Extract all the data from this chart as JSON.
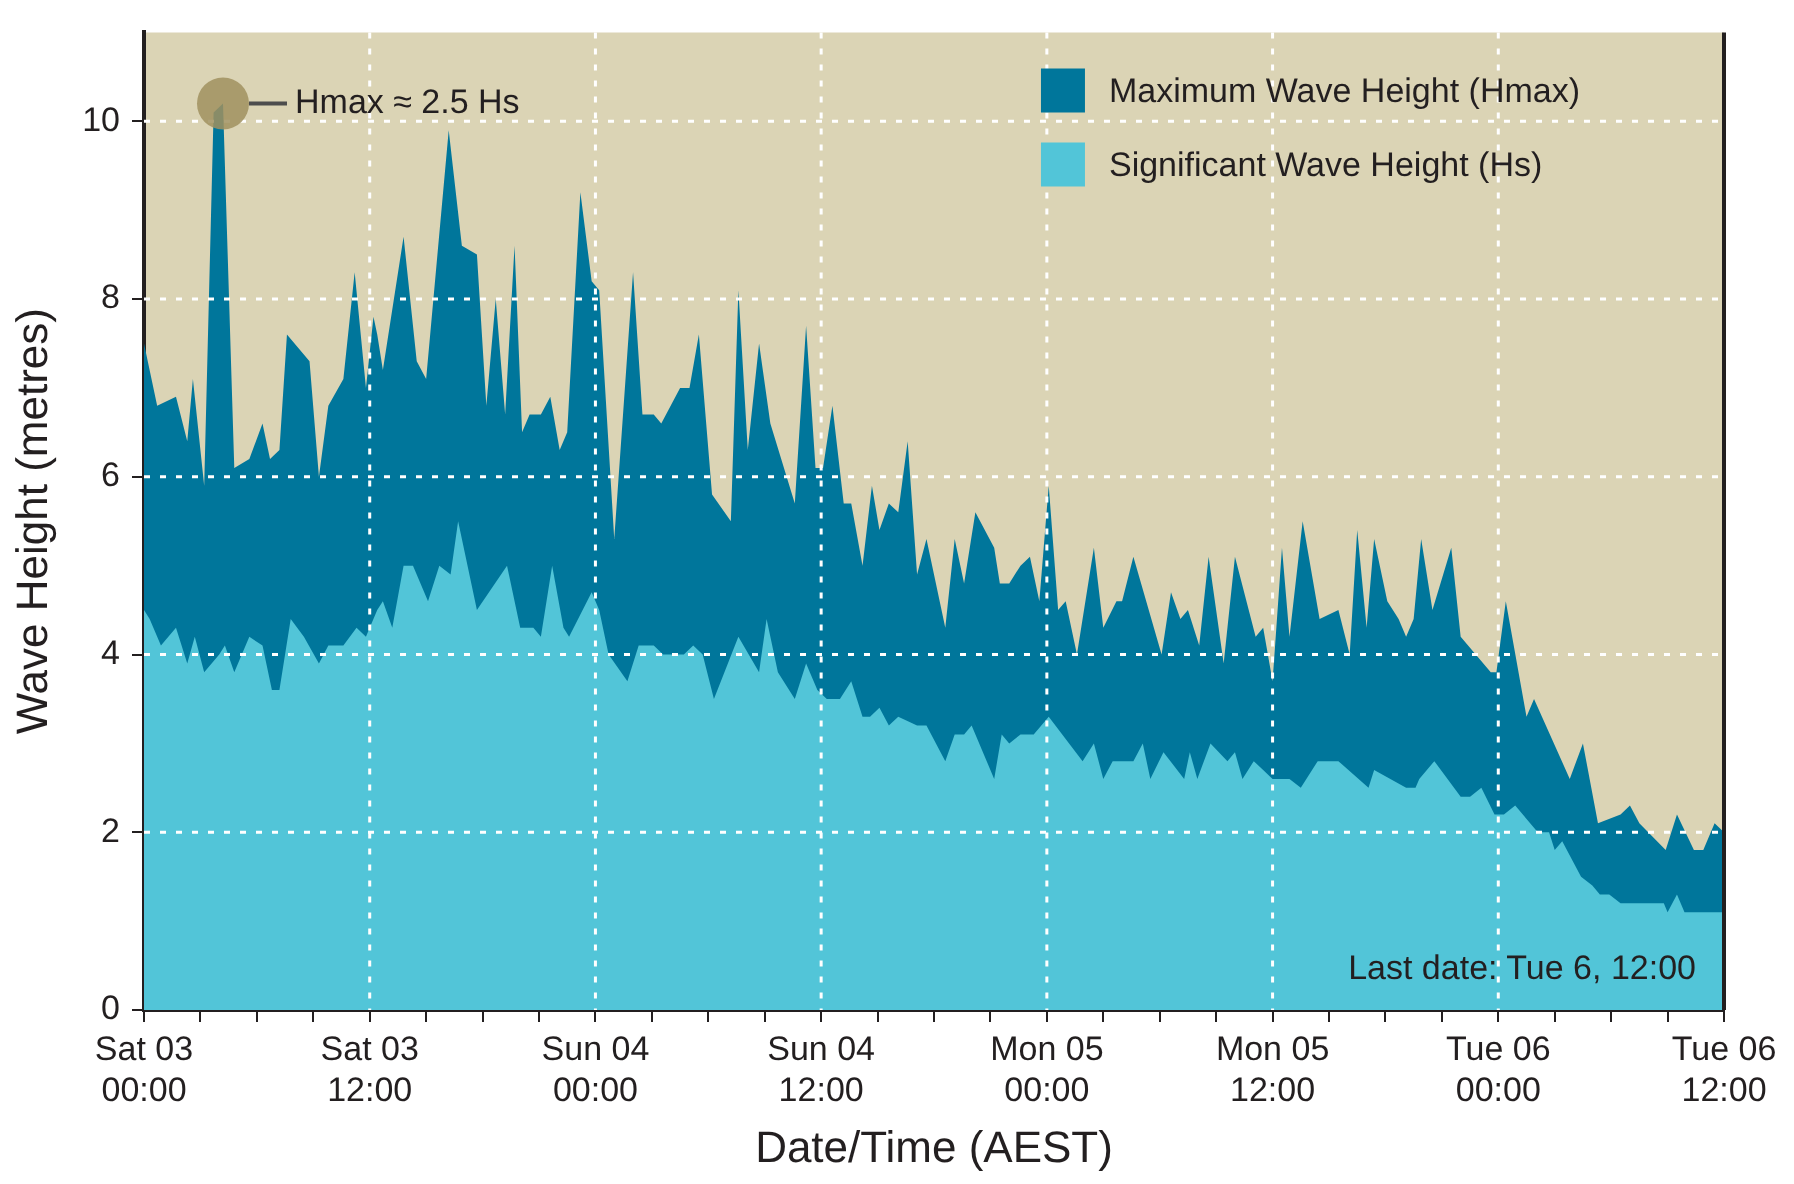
{
  "chart_data": {
    "type": "area",
    "xlabel": "Date/Time (AEST)",
    "ylabel": "Wave Height (metres)",
    "xlim": [
      "--03-03T00:00",
      "--03-06T12:00"
    ],
    "ylim": [
      0,
      11
    ],
    "xticks": [
      {
        "value": "--03-03T00:00",
        "label": "Sat 03\n00:00"
      },
      {
        "value": "--03-03T03:00",
        "label": null
      },
      {
        "value": "--03-03T06:00",
        "label": null
      },
      {
        "value": "--03-03T09:00",
        "label": null
      },
      {
        "value": "--03-03T12:00",
        "label": "Sat 03\n12:00"
      },
      {
        "value": "--03-03T15:00",
        "label": null
      },
      {
        "value": "--03-03T18:00",
        "label": null
      },
      {
        "value": "--03-03T21:00",
        "label": null
      },
      {
        "value": "--03-04T00:00",
        "label": "Sun 04\n00:00"
      },
      {
        "value": "--03-04T03:00",
        "label": null
      },
      {
        "value": "--03-04T06:00",
        "label": null
      },
      {
        "value": "--03-04T09:00",
        "label": null
      },
      {
        "value": "--03-04T12:00",
        "label": "Sun 04\n12:00"
      },
      {
        "value": "--03-04T15:00",
        "label": null
      },
      {
        "value": "--03-04T18:00",
        "label": null
      },
      {
        "value": "--03-04T21:00",
        "label": null
      },
      {
        "value": "--03-05T00:00",
        "label": "Mon 05\n00:00"
      },
      {
        "value": "--03-05T03:00",
        "label": null
      },
      {
        "value": "--03-05T06:00",
        "label": null
      },
      {
        "value": "--03-05T09:00",
        "label": null
      },
      {
        "value": "--03-05T12:00",
        "label": "Mon 05\n12:00"
      },
      {
        "value": "--03-05T15:00",
        "label": null
      },
      {
        "value": "--03-05T18:00",
        "label": null
      },
      {
        "value": "--03-05T21:00",
        "label": null
      },
      {
        "value": "--03-06T00:00",
        "label": "Tue 06\n00:00"
      },
      {
        "value": "--03-06T03:00",
        "label": null
      },
      {
        "value": "--03-06T06:00",
        "label": null
      },
      {
        "value": "--03-06T09:00",
        "label": null
      },
      {
        "value": "--03-06T12:00",
        "label": "Tue 06\n12:00"
      }
    ],
    "yticks": [
      0,
      2,
      4,
      6,
      8,
      10
    ],
    "grid": true,
    "legend": "top right",
    "annotations": [
      {
        "text": "Hmax ≈ 2.5 Hs",
        "x": "--03-03T04:12",
        "y": 10.2
      },
      "Last date: Tue 6, 12:00"
    ],
    "series": [
      {
        "name": "Maximum Wave Height (Hmax)",
        "color": "#00769b",
        "x": [
          "--03-03T00:00",
          "--03-03T00:42",
          "--03-03T01:42",
          "--03-03T02:18",
          "--03-03T02:36",
          "--03-03T03:12",
          "--03-03T03:42",
          "--03-03T04:12",
          "--03-03T04:48",
          "--03-03T05:36",
          "--03-03T06:18",
          "--03-03T06:42",
          "--03-03T07:12",
          "--03-03T07:36",
          "--03-03T08:48",
          "--03-03T09:18",
          "--03-03T09:48",
          "--03-03T10:36",
          "--03-03T11:12",
          "--03-03T11:48",
          "--03-03T12:12",
          "--03-03T12:24",
          "--03-03T12:42",
          "--03-03T13:48",
          "--03-03T14:30",
          "--03-03T15:00",
          "--03-03T16:12",
          "--03-03T16:54",
          "--03-03T17:42",
          "--03-03T18:12",
          "--03-03T18:42",
          "--03-03T19:12",
          "--03-03T19:42",
          "--03-03T20:06",
          "--03-03T20:30",
          "--03-03T21:06",
          "--03-03T21:36",
          "--03-03T22:06",
          "--03-03T22:30",
          "--03-03T23:12",
          "--03-03T23:48",
          "--03-04T00:12",
          "--03-04T01:00",
          "--03-04T02:00",
          "--03-04T02:30",
          "--03-04T03:06",
          "--03-04T03:30",
          "--03-04T04:30",
          "--03-04T05:00",
          "--03-04T05:30",
          "--03-04T06:12",
          "--03-04T07:12",
          "--03-04T07:36",
          "--03-04T08:06",
          "--03-04T08:42",
          "--03-04T09:18",
          "--03-04T10:36",
          "--03-04T11:12",
          "--03-04T11:42",
          "--03-04T12:06",
          "--03-04T12:36",
          "--03-04T13:12",
          "--03-04T13:36",
          "--03-04T14:12",
          "--03-04T14:42",
          "--03-04T15:06",
          "--03-04T15:36",
          "--03-04T16:06",
          "--03-04T16:36",
          "--03-04T17:06",
          "--03-04T17:36",
          "--03-04T18:36",
          "--03-04T19:06",
          "--03-04T19:36",
          "--03-04T20:12",
          "--03-04T21:12",
          "--03-04T21:30",
          "--03-04T22:00",
          "--03-04T22:36",
          "--03-04T23:06",
          "--03-04T23:36",
          "--03-05T00:06",
          "--03-05T00:36",
          "--03-05T01:00",
          "--03-05T01:36",
          "--03-05T02:30",
          "--03-05T03:00",
          "--03-05T03:42",
          "--03-05T04:00",
          "--03-05T04:36",
          "--03-05T06:06",
          "--03-05T06:36",
          "--03-05T07:06",
          "--03-05T07:30",
          "--03-05T08:06",
          "--03-05T08:36",
          "--03-05T09:24",
          "--03-05T10:00",
          "--03-05T11:06",
          "--03-05T11:30",
          "--03-05T12:00",
          "--03-05T12:30",
          "--03-05T12:54",
          "--03-05T13:36",
          "--03-05T14:30",
          "--03-05T15:30",
          "--03-05T16:06",
          "--03-05T16:30",
          "--03-05T17:00",
          "--03-05T17:24",
          "--03-05T18:06",
          "--03-05T18:42",
          "--03-05T19:06",
          "--03-05T19:30",
          "--03-05T19:54",
          "--03-05T20:30",
          "--03-05T21:30",
          "--03-05T22:00",
          "--03-05T23:36",
          "--03-05T23:54",
          "--03-06T00:24",
          "--03-06T01:30",
          "--03-06T01:54",
          "--03-06T03:48",
          "--03-06T04:30",
          "--03-06T05:18",
          "--03-06T06:30",
          "--03-06T07:00",
          "--03-06T07:30",
          "--03-06T08:54",
          "--03-06T09:30",
          "--03-06T10:24",
          "--03-06T10:54",
          "--03-06T11:30",
          "--03-06T12:00"
        ],
        "values": [
          7.5,
          6.8,
          6.9,
          6.4,
          7.1,
          5.9,
          10.1,
          10.2,
          6.1,
          6.2,
          6.6,
          6.2,
          6.3,
          7.6,
          7.3,
          6.0,
          6.8,
          7.1,
          8.3,
          7.0,
          7.8,
          7.6,
          7.2,
          8.7,
          7.3,
          7.1,
          9.9,
          8.6,
          8.5,
          6.8,
          8.0,
          6.7,
          8.6,
          6.5,
          6.7,
          6.7,
          6.9,
          6.3,
          6.5,
          9.2,
          8.2,
          8.1,
          5.3,
          8.3,
          6.7,
          6.7,
          6.6,
          7.0,
          7.0,
          7.6,
          5.8,
          5.5,
          8.1,
          6.3,
          7.5,
          6.6,
          5.7,
          7.7,
          6.1,
          6.1,
          6.8,
          5.7,
          5.7,
          5.0,
          5.9,
          5.4,
          5.7,
          5.6,
          6.4,
          4.9,
          5.3,
          4.3,
          5.3,
          4.8,
          5.6,
          5.2,
          4.8,
          4.8,
          5.0,
          5.1,
          4.6,
          5.9,
          4.5,
          4.6,
          4.0,
          5.2,
          4.3,
          4.6,
          4.6,
          5.1,
          4.0,
          4.7,
          4.4,
          4.5,
          4.1,
          5.1,
          3.9,
          5.1,
          4.2,
          4.3,
          3.7,
          5.2,
          4.2,
          5.5,
          4.4,
          4.5,
          4.0,
          5.4,
          4.3,
          5.3,
          4.6,
          4.4,
          4.2,
          4.4,
          5.3,
          4.5,
          5.2,
          4.2,
          3.8,
          3.8,
          4.6,
          3.3,
          3.5,
          2.6,
          3.0,
          2.1,
          2.2,
          2.3,
          2.1,
          1.8,
          2.2,
          1.8,
          1.8,
          2.1,
          2.0
        ]
      },
      {
        "name": "Significant Wave Height (Hs)",
        "color": "#52c5d8",
        "x": [
          "--03-03T00:00",
          "--03-03T00:18",
          "--03-03T00:54",
          "--03-03T01:42",
          "--03-03T02:18",
          "--03-03T02:42",
          "--03-03T03:12",
          "--03-03T04:00",
          "--03-03T04:18",
          "--03-03T04:48",
          "--03-03T05:36",
          "--03-03T06:18",
          "--03-03T06:48",
          "--03-03T07:12",
          "--03-03T07:48",
          "--03-03T08:30",
          "--03-03T09:18",
          "--03-03T09:48",
          "--03-03T10:36",
          "--03-03T11:18",
          "--03-03T11:48",
          "--03-03T12:24",
          "--03-03T12:42",
          "--03-03T13:12",
          "--03-03T13:48",
          "--03-03T14:18",
          "--03-03T15:06",
          "--03-03T15:42",
          "--03-03T16:18",
          "--03-03T16:42",
          "--03-03T17:42",
          "--03-03T19:18",
          "--03-03T20:00",
          "--03-03T20:42",
          "--03-03T21:06",
          "--03-03T21:42",
          "--03-03T22:18",
          "--03-03T22:36",
          "--03-03T23:48",
          "--03-04T00:12",
          "--03-04T00:42",
          "--03-04T01:42",
          "--03-04T02:18",
          "--03-04T03:06",
          "--03-04T03:36",
          "--03-04T04:42",
          "--03-04T05:12",
          "--03-04T05:42",
          "--03-04T06:18",
          "--03-04T07:36",
          "--03-04T08:42",
          "--03-04T09:06",
          "--03-04T09:42",
          "--03-04T10:36",
          "--03-04T11:12",
          "--03-04T11:48",
          "--03-04T12:18",
          "--03-04T13:00",
          "--03-04T13:36",
          "--03-04T14:12",
          "--03-04T14:36",
          "--03-04T15:06",
          "--03-04T15:36",
          "--03-04T16:06",
          "--03-04T17:06",
          "--03-04T17:36",
          "--03-04T18:36",
          "--03-04T19:06",
          "--03-04T19:36",
          "--03-04T20:00",
          "--03-04T21:12",
          "--03-04T21:36",
          "--03-04T22:00",
          "--03-04T22:36",
          "--03-04T23:18",
          "--03-05T00:06",
          "--03-05T01:54",
          "--03-05T02:30",
          "--03-05T03:00",
          "--03-05T03:30",
          "--03-05T04:36",
          "--03-05T05:06",
          "--03-05T05:30",
          "--03-05T06:12",
          "--03-05T07:18",
          "--03-05T07:36",
          "--03-05T08:00",
          "--03-05T08:42",
          "--03-05T09:36",
          "--03-05T10:00",
          "--03-05T10:24",
          "--03-05T11:00",
          "--03-05T11:30",
          "--03-05T12:00",
          "--03-05T12:36",
          "--03-05T12:54",
          "--03-05T13:30",
          "--03-05T14:24",
          "--03-05T15:30",
          "--03-05T17:06",
          "--03-05T17:24",
          "--03-05T19:06",
          "--03-05T19:36",
          "--03-05T19:48",
          "--03-05T20:36",
          "--03-05T22:00",
          "--03-05T22:30",
          "--03-05T23:06",
          "--03-05T23:48",
          "--03-06T00:18",
          "--03-06T00:54",
          "--03-06T02:06",
          "--03-06T02:42",
          "--03-06T03:00",
          "--03-06T03:24",
          "--03-06T04:24",
          "--03-06T05:00",
          "--03-06T05:24",
          "--03-06T05:54",
          "--03-06T06:30",
          "--03-06T08:48",
          "--03-06T09:00",
          "--03-06T09:30",
          "--03-06T09:54",
          "--03-06T12:00"
        ],
        "values": [
          4.5,
          4.4,
          4.1,
          4.3,
          3.9,
          4.2,
          3.8,
          4.0,
          4.1,
          3.8,
          4.2,
          4.1,
          3.6,
          3.6,
          4.4,
          4.2,
          3.9,
          4.1,
          4.1,
          4.3,
          4.2,
          4.5,
          4.6,
          4.3,
          5.0,
          5.0,
          4.6,
          5.0,
          4.9,
          5.5,
          4.5,
          5.0,
          4.3,
          4.3,
          4.2,
          5.0,
          4.3,
          4.2,
          4.7,
          4.5,
          4.0,
          3.7,
          4.1,
          4.1,
          4.0,
          4.0,
          4.1,
          4.0,
          3.5,
          4.2,
          3.8,
          4.4,
          3.8,
          3.5,
          3.9,
          3.6,
          3.5,
          3.5,
          3.7,
          3.3,
          3.3,
          3.4,
          3.2,
          3.3,
          3.2,
          3.2,
          2.8,
          3.1,
          3.1,
          3.2,
          2.6,
          3.1,
          3.0,
          3.1,
          3.1,
          3.3,
          2.8,
          3.0,
          2.6,
          2.8,
          2.8,
          3.0,
          2.6,
          2.9,
          2.6,
          2.9,
          2.6,
          3.0,
          2.8,
          2.9,
          2.6,
          2.8,
          2.7,
          2.6,
          2.6,
          2.6,
          2.5,
          2.8,
          2.8,
          2.5,
          2.7,
          2.5,
          2.5,
          2.6,
          2.8,
          2.4,
          2.4,
          2.5,
          2.2,
          2.2,
          2.3,
          2.0,
          2.0,
          1.8,
          1.9,
          1.5,
          1.4,
          1.3,
          1.3,
          1.2,
          1.2,
          1.1,
          1.3,
          1.1,
          1.1
        ]
      }
    ]
  }
}
